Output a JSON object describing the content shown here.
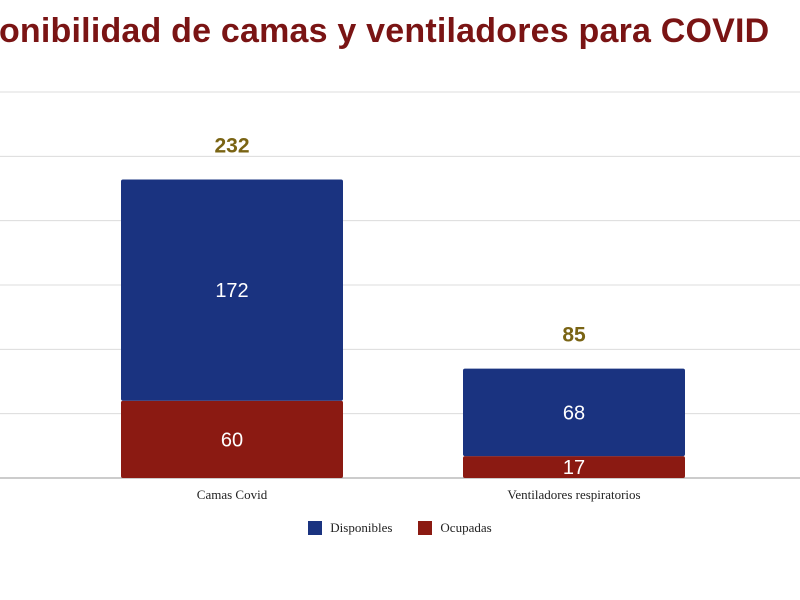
{
  "title": "ponibilidad de camas y ventiladores para COVID",
  "colors": {
    "disponibles": "#1a3380",
    "ocupadas": "#8b1a12",
    "total_label": "#7a6414",
    "title": "#7a1414",
    "grid": "#dcdcdc"
  },
  "legend": [
    {
      "label": "Disponibles",
      "color": "#1a3380"
    },
    {
      "label": "Ocupadas",
      "color": "#8b1a12"
    }
  ],
  "chart_data": {
    "type": "bar",
    "stacked": true,
    "categories": [
      "Camas Covid",
      "Ventiladores respiratorios"
    ],
    "series": [
      {
        "name": "Ocupadas",
        "values": [
          60,
          17
        ]
      },
      {
        "name": "Disponibles",
        "values": [
          172,
          68
        ]
      }
    ],
    "totals": [
      232,
      85
    ],
    "ylim": [
      0,
      300
    ],
    "grid": true,
    "legend_position": "bottom"
  }
}
